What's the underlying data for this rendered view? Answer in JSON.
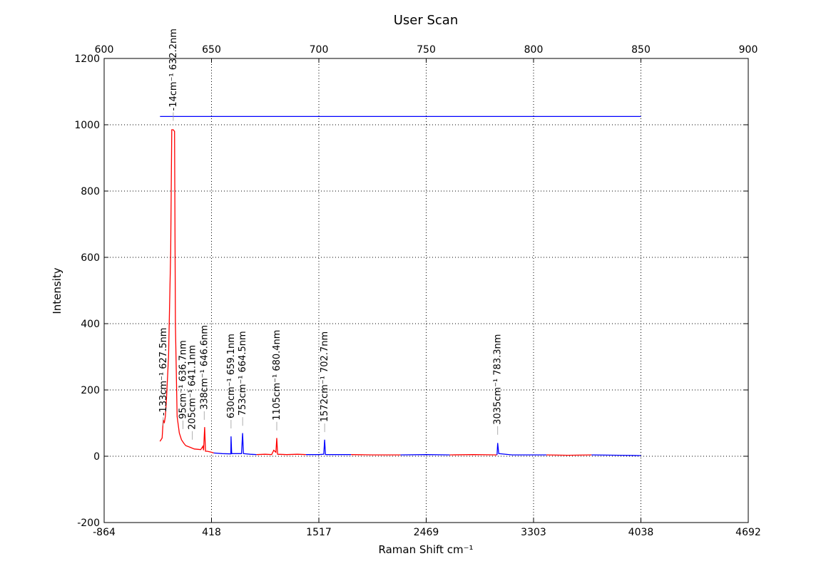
{
  "chart_data": {
    "type": "line",
    "title": "User Scan",
    "xlabel": "Raman Shift cm⁻¹",
    "ylabel": "Intensity",
    "xlim": [
      600,
      900
    ],
    "ylim": [
      -200,
      1200
    ],
    "xticks": [
      {
        "value": 600,
        "label": "-864"
      },
      {
        "value": 650,
        "label": "418"
      },
      {
        "value": 700,
        "label": "1517"
      },
      {
        "value": 750,
        "label": "2469"
      },
      {
        "value": 800,
        "label": "3303"
      },
      {
        "value": 850,
        "label": "4038"
      },
      {
        "value": 900,
        "label": "4692"
      }
    ],
    "x2ticks": [
      600,
      650,
      700,
      750,
      800,
      850,
      900
    ],
    "yticks": [
      -200,
      0,
      200,
      400,
      600,
      800,
      1000,
      1200
    ],
    "grid": true,
    "series": [
      {
        "color": "#ff0000",
        "x": [
          626,
          627,
          627.5,
          628,
          628.5,
          629,
          630,
          631,
          631.5,
          632.2,
          632.8,
          633.2,
          634,
          635,
          636,
          637,
          638,
          640,
          642,
          645,
          646,
          646.3,
          646.8,
          647.2,
          648,
          650,
          651
        ],
        "values": [
          45,
          55,
          110,
          100,
          120,
          170,
          300,
          620,
          985,
          985,
          980,
          400,
          120,
          70,
          50,
          40,
          32,
          27,
          22,
          20,
          30,
          18,
          88,
          15,
          15,
          12,
          10
        ]
      },
      {
        "color": "#0000ff",
        "x": [
          651,
          655,
          659,
          659.1,
          659.4,
          664,
          664.5,
          664.9,
          668,
          671
        ],
        "values": [
          10,
          8,
          7,
          60,
          8,
          8,
          70,
          8,
          6,
          5
        ]
      },
      {
        "color": "#ff0000",
        "x": [
          671,
          675,
          678,
          679,
          680,
          680.4,
          680.8,
          685,
          690,
          694
        ],
        "values": [
          5,
          6,
          5,
          18,
          12,
          55,
          6,
          5,
          6,
          5
        ]
      },
      {
        "color": "#0000ff",
        "x": [
          694,
          700,
          702.3,
          702.7,
          703.1,
          708,
          715
        ],
        "values": [
          5,
          5,
          6,
          50,
          5,
          5,
          5
        ]
      },
      {
        "color": "#ff0000",
        "x": [
          715,
          725,
          738
        ],
        "values": [
          5,
          4,
          4
        ]
      },
      {
        "color": "#0000ff",
        "x": [
          738,
          750,
          761
        ],
        "values": [
          4,
          5,
          4
        ]
      },
      {
        "color": "#ff0000",
        "x": [
          761,
          772,
          783
        ],
        "values": [
          4,
          5,
          4
        ]
      },
      {
        "color": "#0000ff",
        "x": [
          783,
          783.3,
          783.8,
          790,
          806
        ],
        "values": [
          4,
          40,
          8,
          4,
          4
        ]
      },
      {
        "color": "#ff0000",
        "x": [
          806,
          816,
          827
        ],
        "values": [
          4,
          3,
          4
        ]
      },
      {
        "color": "#0000ff",
        "x": [
          827,
          840,
          850
        ],
        "values": [
          4,
          3,
          2
        ]
      },
      {
        "color": "#0000ff",
        "x": [
          626,
          850
        ],
        "values": [
          1025,
          1025
        ]
      }
    ],
    "annotations": [
      {
        "text": "-133cm⁻¹ 627.5nm",
        "x": 627.5,
        "y": 122
      },
      {
        "text": "-14cm⁻¹ 632.2nm",
        "x": 632.2,
        "y": 1042
      },
      {
        "text": "95cm⁻¹ 636.7nm",
        "x": 636.7,
        "y": 112
      },
      {
        "text": "205cm⁻¹ 641.1nm",
        "x": 641.1,
        "y": 80
      },
      {
        "text": "338cm⁻¹ 646.6nm",
        "x": 646.6,
        "y": 140
      },
      {
        "text": "630cm⁻¹ 659.1nm",
        "x": 659.1,
        "y": 114
      },
      {
        "text": "753cm⁻¹ 664.5nm",
        "x": 664.5,
        "y": 122
      },
      {
        "text": "1105cm⁻¹ 680.4nm",
        "x": 680.4,
        "y": 108
      },
      {
        "text": "1572cm⁻¹ 702.7nm",
        "x": 702.7,
        "y": 103
      },
      {
        "text": "3035cm⁻¹ 783.3nm",
        "x": 783.3,
        "y": 95
      }
    ]
  }
}
